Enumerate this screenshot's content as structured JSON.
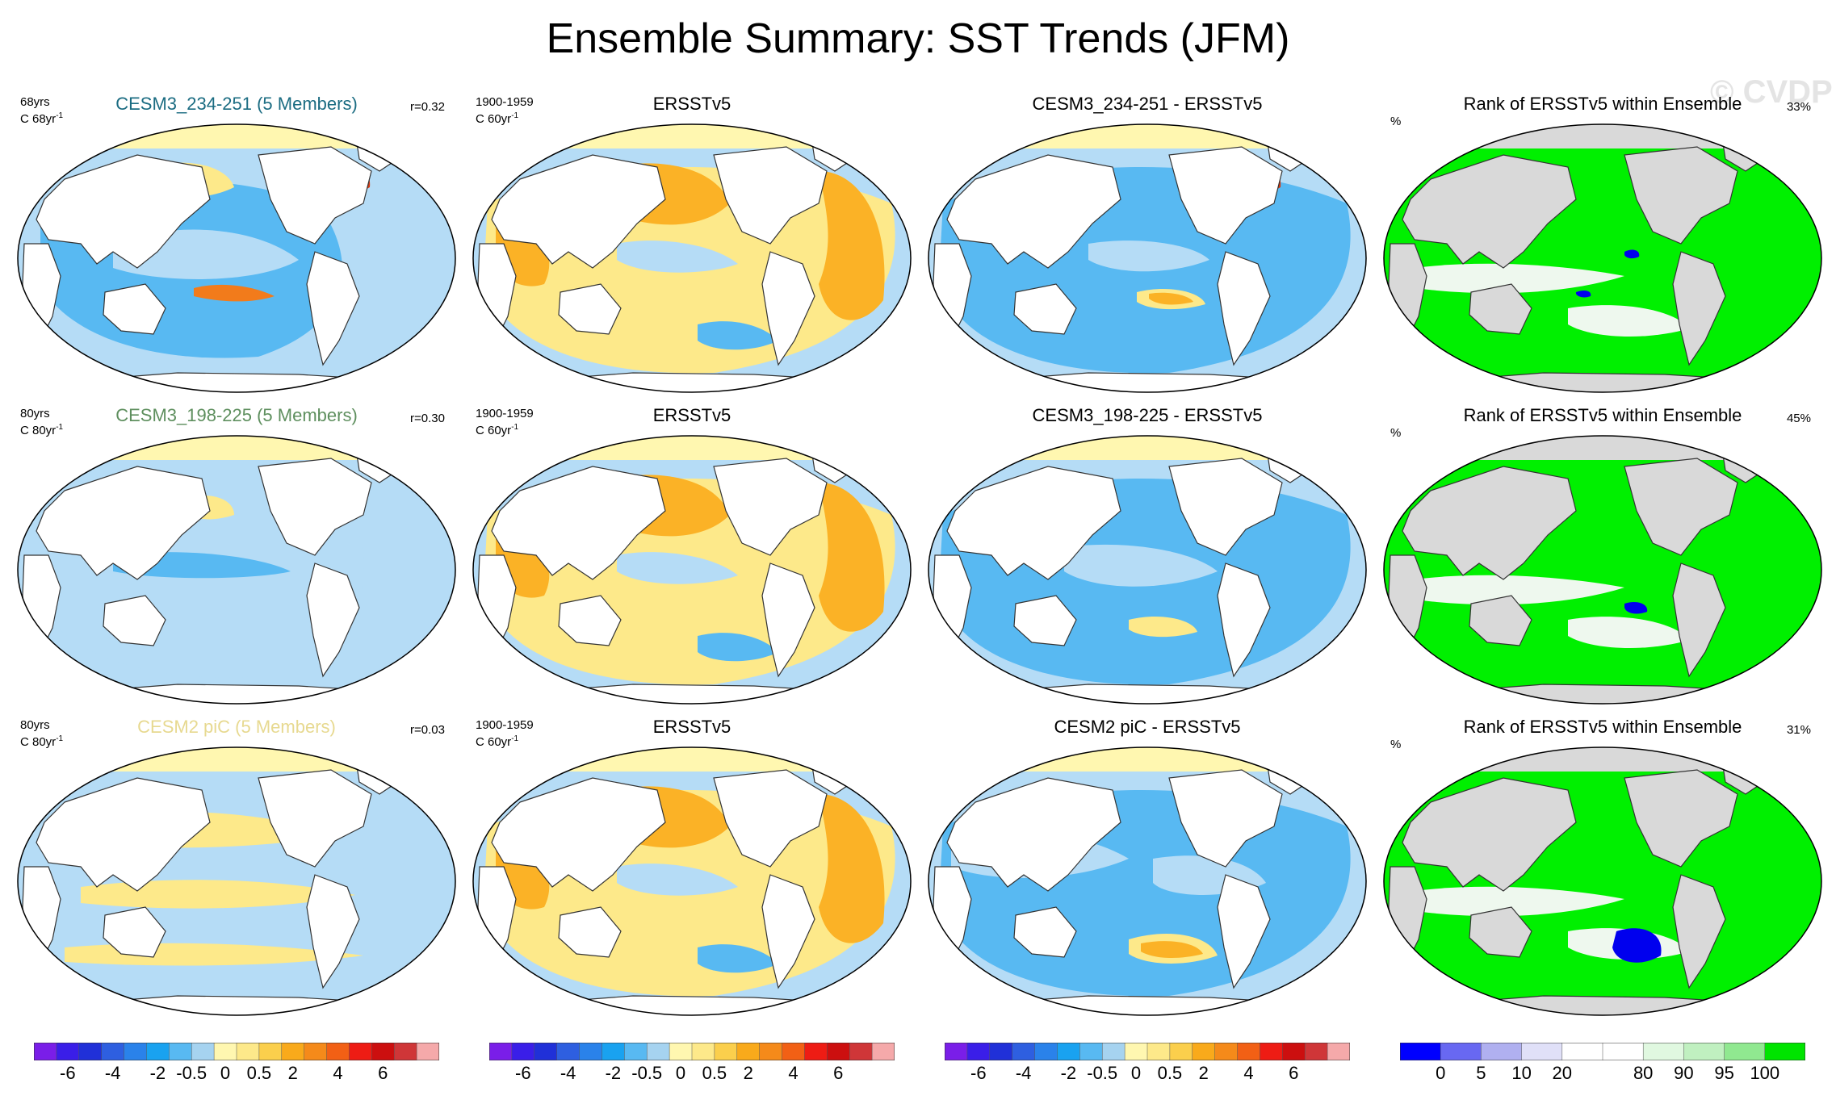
{
  "title": "Ensemble Summary: SST Trends (JFM)",
  "watermark": "© CVDP",
  "colors": {
    "land": "#ffffff",
    "land_rank": "#d9d9d9",
    "sea_ice": "#fff7b0",
    "neg_mid": "#58b9f2",
    "neg_light": "#b5dcf6",
    "pos_light": "#fde98a",
    "pos_mid": "#fbb226",
    "pos_strong": "#f27b1b",
    "rank_high": "#00f000",
    "rank_low": "#0000ee",
    "rank_mid": "#eef8ee"
  },
  "rows": [
    {
      "model_title": "CESM3_234-251 (5 Members)",
      "model_title_color": "#1b6c82",
      "model_years": "68yrs",
      "model_units": "C 68yr",
      "model_units_sup": "-1",
      "pattern_corr": "r=0.32",
      "obs_title": "ERSSTv5",
      "obs_years": "1900-1959",
      "obs_units": "C 60yr",
      "obs_units_sup": "-1",
      "diff_title": "CESM3_234-251 - ERSSTv5",
      "rank_title": "Rank of ERSSTv5 within Ensemble",
      "rank_units": "%",
      "rank_pct": "33%"
    },
    {
      "model_title": "CESM3_198-225 (5 Members)",
      "model_title_color": "#5e8f5e",
      "model_years": "80yrs",
      "model_units": "C 80yr",
      "model_units_sup": "-1",
      "pattern_corr": "r=0.30",
      "obs_title": "ERSSTv5",
      "obs_years": "1900-1959",
      "obs_units": "C 60yr",
      "obs_units_sup": "-1",
      "diff_title": "CESM3_198-225 - ERSSTv5",
      "rank_title": "Rank of ERSSTv5 within Ensemble",
      "rank_units": "%",
      "rank_pct": "45%"
    },
    {
      "model_title": "CESM2 piC (5 Members)",
      "model_title_color": "#e7d990",
      "model_years": "80yrs",
      "model_units": "C 80yr",
      "model_units_sup": "-1",
      "pattern_corr": "r=0.03",
      "obs_title": "ERSSTv5",
      "obs_years": "1900-1959",
      "obs_units": "C 60yr",
      "obs_units_sup": "-1",
      "diff_title": "CESM2 piC - ERSSTv5",
      "rank_title": "Rank of ERSSTv5 within Ensemble",
      "rank_units": "%",
      "rank_pct": "31%"
    }
  ],
  "trend_colorbar": {
    "colors": [
      "#7a1ee8",
      "#3a1ee8",
      "#2030d8",
      "#2e5fe0",
      "#2a82ea",
      "#19a2f0",
      "#58b9f2",
      "#a6d3f0",
      "#fff7b0",
      "#fde98a",
      "#fbcf4c",
      "#f9aa1b",
      "#f58a1a",
      "#f26015",
      "#ee1c14",
      "#cc0f0f",
      "#cf3638",
      "#f5a9aa"
    ],
    "labels": [
      "-6",
      "-4",
      "-2",
      "-0.5",
      "0",
      "0.5",
      "2",
      "4",
      "6"
    ]
  },
  "rank_colorbar": {
    "colors": [
      "#0000ff",
      "#6868f2",
      "#b0b0f0",
      "#e0e0f8",
      "#ffffff",
      "#ffffff",
      "#e0f8e0",
      "#c0f0c0",
      "#90e890",
      "#00e400"
    ],
    "labels": [
      "0",
      "5",
      "10",
      "20",
      "80",
      "90",
      "95",
      "100"
    ]
  }
}
